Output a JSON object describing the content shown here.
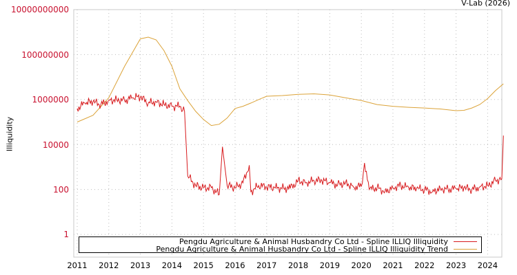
{
  "credit": "V-Lab (2026)",
  "chart_data": {
    "type": "line",
    "title": "",
    "xlabel": "",
    "ylabel": "Illiquidity",
    "yscale": "log",
    "ylim": [
      1,
      10000000000
    ],
    "xlim": [
      2010.9,
      2024.5
    ],
    "grid": true,
    "legend_position": "bottom-inside",
    "y_ticks": [
      "10000000000",
      "100000000",
      "1000000",
      "10000",
      "100",
      "1"
    ],
    "x_ticks": [
      "2011",
      "2012",
      "2013",
      "2014",
      "2015",
      "2016",
      "2017",
      "2018",
      "2019",
      "2020",
      "2021",
      "2022",
      "2023",
      "2024"
    ],
    "series": [
      {
        "name": "Pengdu Agriculture & Animal Husbandry Co Ltd - Spline ILLIQ Illiquidity",
        "color": "#d7191c",
        "x": [
          2011.0,
          2011.25,
          2011.5,
          2011.75,
          2012.0,
          2012.25,
          2012.5,
          2012.75,
          2013.0,
          2013.25,
          2013.5,
          2013.75,
          2014.0,
          2014.25,
          2014.4,
          2014.5,
          2014.75,
          2015.0,
          2015.25,
          2015.5,
          2015.6,
          2015.75,
          2016.0,
          2016.25,
          2016.45,
          2016.5,
          2016.75,
          2017.0,
          2017.25,
          2017.75,
          2018.0,
          2018.25,
          2018.5,
          2018.75,
          2019.0,
          2019.25,
          2019.5,
          2019.75,
          2020.0,
          2020.1,
          2020.25,
          2020.5,
          2020.75,
          2021.0,
          2021.25,
          2021.5,
          2021.75,
          2022.0,
          2022.25,
          2022.5,
          2022.75,
          2023.0,
          2023.25,
          2023.5,
          2023.75,
          2024.0,
          2024.25,
          2024.45,
          2024.5
        ],
        "values": [
          400000,
          700000,
          800000,
          600000,
          900000,
          1000000,
          900000,
          1200000,
          1300000,
          700000,
          800000,
          600000,
          500000,
          500000,
          300000,
          400,
          150,
          120,
          120,
          60,
          8000,
          150,
          120,
          200,
          1200,
          80,
          150,
          130,
          120,
          110,
          250,
          200,
          250,
          250,
          200,
          160,
          200,
          130,
          140,
          1500,
          100,
          120,
          80,
          120,
          150,
          120,
          110,
          100,
          80,
          110,
          100,
          110,
          120,
          100,
          130,
          150,
          250,
          300,
          25000
        ]
      },
      {
        "name": "Pengdu Agriculture & Animal Husbandry Co Ltd - Spline ILLIQ Illiquidity Trend",
        "color": "#dba237",
        "x": [
          2011.0,
          2011.5,
          2012.0,
          2012.5,
          2013.0,
          2013.25,
          2013.5,
          2013.75,
          2014.0,
          2014.25,
          2014.5,
          2014.75,
          2015.0,
          2015.25,
          2015.5,
          2015.75,
          2016.0,
          2016.25,
          2016.5,
          2016.75,
          2017.0,
          2017.5,
          2018.0,
          2018.5,
          2019.0,
          2019.5,
          2020.0,
          2020.5,
          2021.0,
          2021.5,
          2022.0,
          2022.5,
          2023.0,
          2023.25,
          2023.5,
          2023.75,
          2024.0,
          2024.25,
          2024.5
        ],
        "values": [
          100000,
          200000,
          1200000,
          30000000,
          500000000,
          600000000,
          450000000,
          150000000,
          30000000,
          3000000,
          900000,
          300000,
          130000,
          70000,
          80000,
          150000,
          400000,
          500000,
          700000,
          1000000,
          1400000,
          1500000,
          1700000,
          1800000,
          1600000,
          1200000,
          900000,
          600000,
          500000,
          450000,
          420000,
          380000,
          320000,
          330000,
          420000,
          600000,
          1100000,
          2500000,
          5000000
        ]
      }
    ]
  },
  "legend": {
    "entries": [
      {
        "label": "Pengdu Agriculture & Animal Husbandry Co Ltd - Spline ILLIQ Illiquidity",
        "color": "#d7191c"
      },
      {
        "label": "Pengdu Agriculture & Animal Husbandry Co Ltd - Spline ILLIQ Illiquidity Trend",
        "color": "#dba237"
      }
    ]
  }
}
